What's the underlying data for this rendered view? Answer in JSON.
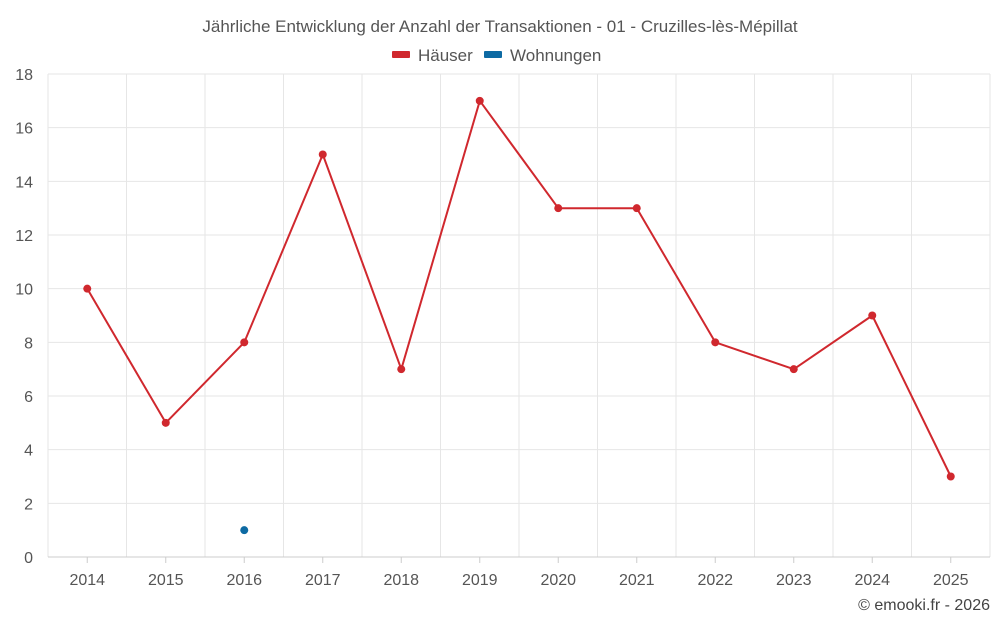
{
  "chart_data": {
    "type": "line",
    "title": "Jährliche Entwicklung der Anzahl der Transaktionen - 01 - Cruzilles-lès-Mépillat",
    "categories": [
      "2014",
      "2015",
      "2016",
      "2017",
      "2018",
      "2019",
      "2020",
      "2021",
      "2022",
      "2023",
      "2024",
      "2025"
    ],
    "series": [
      {
        "name": "Häuser",
        "color": "#d0282e",
        "values": [
          10,
          5,
          8,
          15,
          7,
          17,
          13,
          13,
          8,
          7,
          9,
          3
        ]
      },
      {
        "name": "Wohnungen",
        "color": "#0d6aa3",
        "values": [
          null,
          null,
          1,
          null,
          null,
          null,
          null,
          null,
          null,
          null,
          null,
          null
        ]
      }
    ],
    "ylim": [
      0,
      18
    ],
    "yticks": [
      0,
      2,
      4,
      6,
      8,
      10,
      12,
      14,
      16,
      18
    ],
    "grid": true,
    "legend_position": "top-center",
    "xlabel": "",
    "ylabel": ""
  },
  "credit": "© emooki.fr - 2026"
}
